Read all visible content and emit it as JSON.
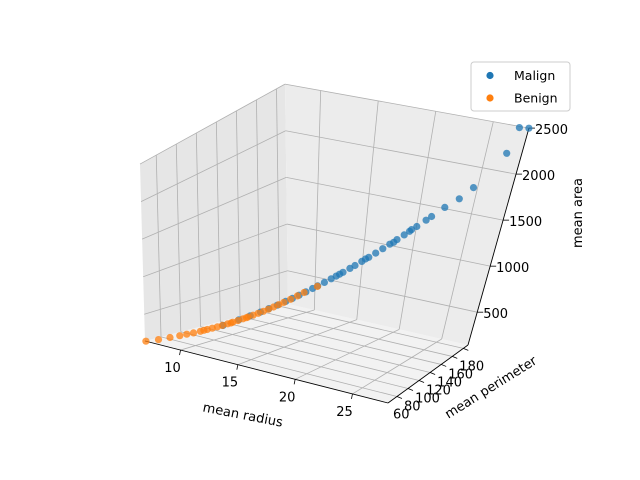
{
  "chart_data": {
    "type": "scatter",
    "projection": "3d",
    "title": "",
    "xlabel": "mean radius",
    "ylabel": "mean perimeter",
    "zlabel": "mean area",
    "xlim": [
      6.9,
      28.1
    ],
    "ylim": [
      43.8,
      188.5
    ],
    "zlim": [
      143.5,
      2501
    ],
    "xticks": [
      10,
      15,
      20,
      25
    ],
    "yticks": [
      40,
      60,
      80,
      100,
      120,
      140,
      160,
      180
    ],
    "zticks": [
      500,
      1000,
      1500,
      2000,
      2500
    ],
    "grid": true,
    "legend_position": "top-right",
    "series": [
      {
        "name": "Malign",
        "color": "#1f77b4",
        "points": [
          [
            11.4,
            73.3,
            400
          ],
          [
            12.3,
            80.0,
            475
          ],
          [
            13.0,
            84.2,
            530
          ],
          [
            13.6,
            88.4,
            578
          ],
          [
            14.1,
            91.8,
            622
          ],
          [
            14.6,
            95.2,
            665
          ],
          [
            15.1,
            98.6,
            711
          ],
          [
            15.5,
            101.3,
            748
          ],
          [
            15.9,
            104.0,
            786
          ],
          [
            16.3,
            106.7,
            825
          ],
          [
            16.7,
            109.4,
            864
          ],
          [
            17.0,
            111.5,
            894
          ],
          [
            17.4,
            114.2,
            934
          ],
          [
            17.8,
            116.9,
            975
          ],
          [
            18.1,
            118.9,
            1006
          ],
          [
            18.5,
            121.6,
            1048
          ],
          [
            18.9,
            124.4,
            1091
          ],
          [
            19.2,
            126.4,
            1123
          ],
          [
            19.6,
            129.1,
            1167
          ],
          [
            20.0,
            131.9,
            1211
          ],
          [
            20.4,
            134.6,
            1256
          ],
          [
            20.8,
            137.4,
            1302
          ],
          [
            21.2,
            140.2,
            1349
          ],
          [
            21.6,
            143.0,
            1396
          ],
          [
            22.0,
            145.8,
            1444
          ],
          [
            22.3,
            147.9,
            1480
          ],
          [
            22.7,
            150.7,
            1529
          ],
          [
            23.2,
            154.3,
            1591
          ],
          [
            23.5,
            156.4,
            1628
          ],
          [
            24.2,
            161.4,
            1717
          ],
          [
            25.0,
            166.5,
            1800
          ],
          [
            25.7,
            171.9,
            1906
          ],
          [
            27.2,
            182.1,
            2250
          ],
          [
            28.1,
            188.5,
            2499
          ],
          [
            27.4,
            186.9,
            2501
          ],
          [
            22.5,
            147.3,
            1509
          ],
          [
            21.4,
            142.0,
            1365
          ],
          [
            19.8,
            130.7,
            1192
          ],
          [
            18.3,
            120.2,
            1027
          ]
        ]
      },
      {
        "name": "Benign",
        "color": "#ff7f0e",
        "points": [
          [
            6.98,
            43.8,
            143.5
          ],
          [
            7.7,
            48.3,
            178
          ],
          [
            8.3,
            53.2,
            210
          ],
          [
            8.9,
            56.5,
            244
          ],
          [
            9.3,
            59.2,
            268
          ],
          [
            9.7,
            61.6,
            291
          ],
          [
            10.1,
            64.3,
            316
          ],
          [
            10.5,
            66.9,
            343
          ],
          [
            10.8,
            68.8,
            362
          ],
          [
            11.1,
            70.8,
            383
          ],
          [
            11.4,
            72.7,
            404
          ],
          [
            11.7,
            74.9,
            425
          ],
          [
            12.0,
            76.9,
            447
          ],
          [
            12.3,
            78.9,
            470
          ],
          [
            12.6,
            81.0,
            493
          ],
          [
            12.9,
            83.0,
            517
          ],
          [
            13.2,
            85.0,
            541
          ],
          [
            13.5,
            87.1,
            566
          ],
          [
            13.8,
            89.2,
            591
          ],
          [
            14.1,
            91.3,
            617
          ],
          [
            14.4,
            93.4,
            644
          ],
          [
            14.7,
            95.5,
            672
          ],
          [
            15.0,
            97.6,
            700
          ],
          [
            15.4,
            100.4,
            738
          ],
          [
            15.8,
            103.2,
            778
          ],
          [
            16.2,
            105.9,
            818
          ],
          [
            17.0,
            111.2,
            890
          ],
          [
            12.8,
            82.3,
            508
          ],
          [
            10.3,
            65.7,
            330
          ],
          [
            11.9,
            76.1,
            437
          ]
        ]
      }
    ]
  }
}
